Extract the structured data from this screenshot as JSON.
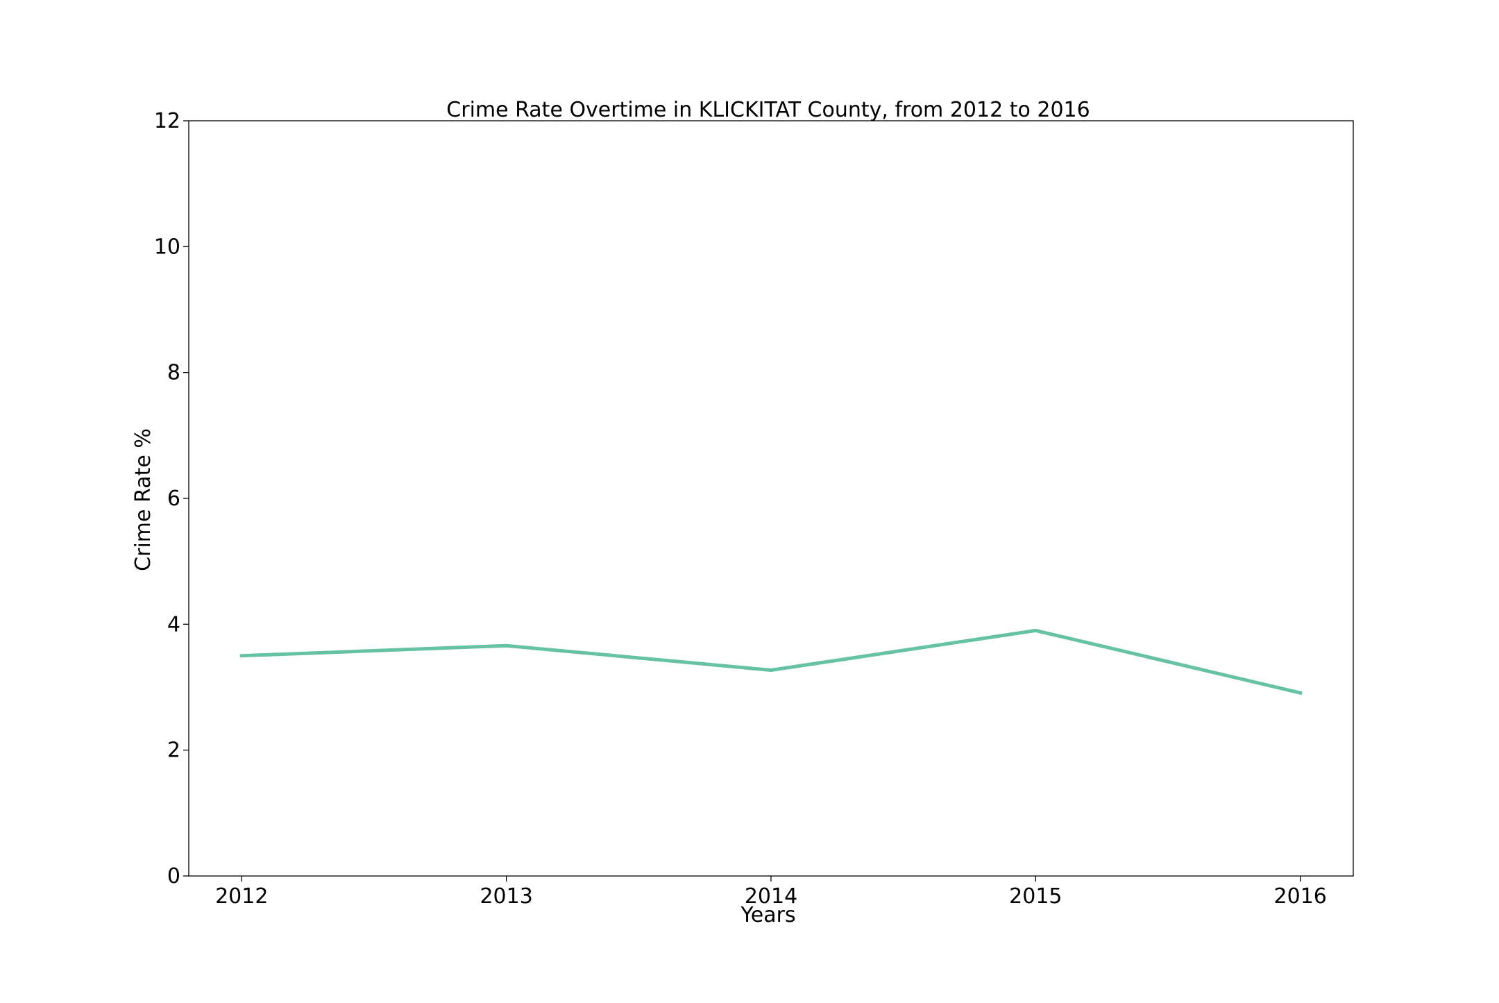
{
  "chart_data": {
    "type": "line",
    "title": "Crime Rate Overtime in KLICKITAT County, from 2012 to 2016",
    "xlabel": "Years",
    "ylabel": "Crime Rate %",
    "x": [
      2012,
      2013,
      2014,
      2015,
      2016
    ],
    "x_tick_labels": [
      "2012",
      "2013",
      "2014",
      "2015",
      "2016"
    ],
    "y_ticks": [
      0,
      2,
      4,
      6,
      8,
      10,
      12
    ],
    "y_tick_labels": [
      "0",
      "2",
      "4",
      "6",
      "8",
      "10",
      "12"
    ],
    "ylim": [
      0,
      12
    ],
    "xlim": [
      2011.8,
      2016.2
    ],
    "grid": false,
    "legend": "none",
    "series": [
      {
        "values": [
          3.5,
          3.66,
          3.27,
          3.9,
          2.91
        ],
        "color": "#66c2a5"
      }
    ]
  }
}
